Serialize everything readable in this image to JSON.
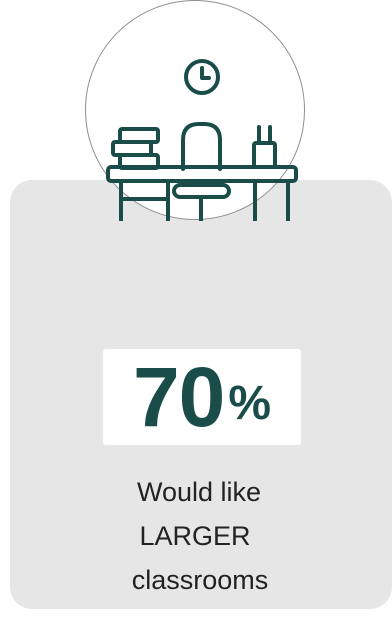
{
  "icon": {
    "name": "desk-with-chair-and-clock-icon",
    "color": "#1a4d4a"
  },
  "stat": {
    "number": "70",
    "unit": "%",
    "value": 70
  },
  "caption": {
    "line1": "Would like",
    "line2": "LARGER",
    "line3": "classrooms"
  },
  "colors": {
    "accent": "#1a4d4a",
    "card_background": "#e6e6e6",
    "circle_border": "#8f8f8f"
  }
}
